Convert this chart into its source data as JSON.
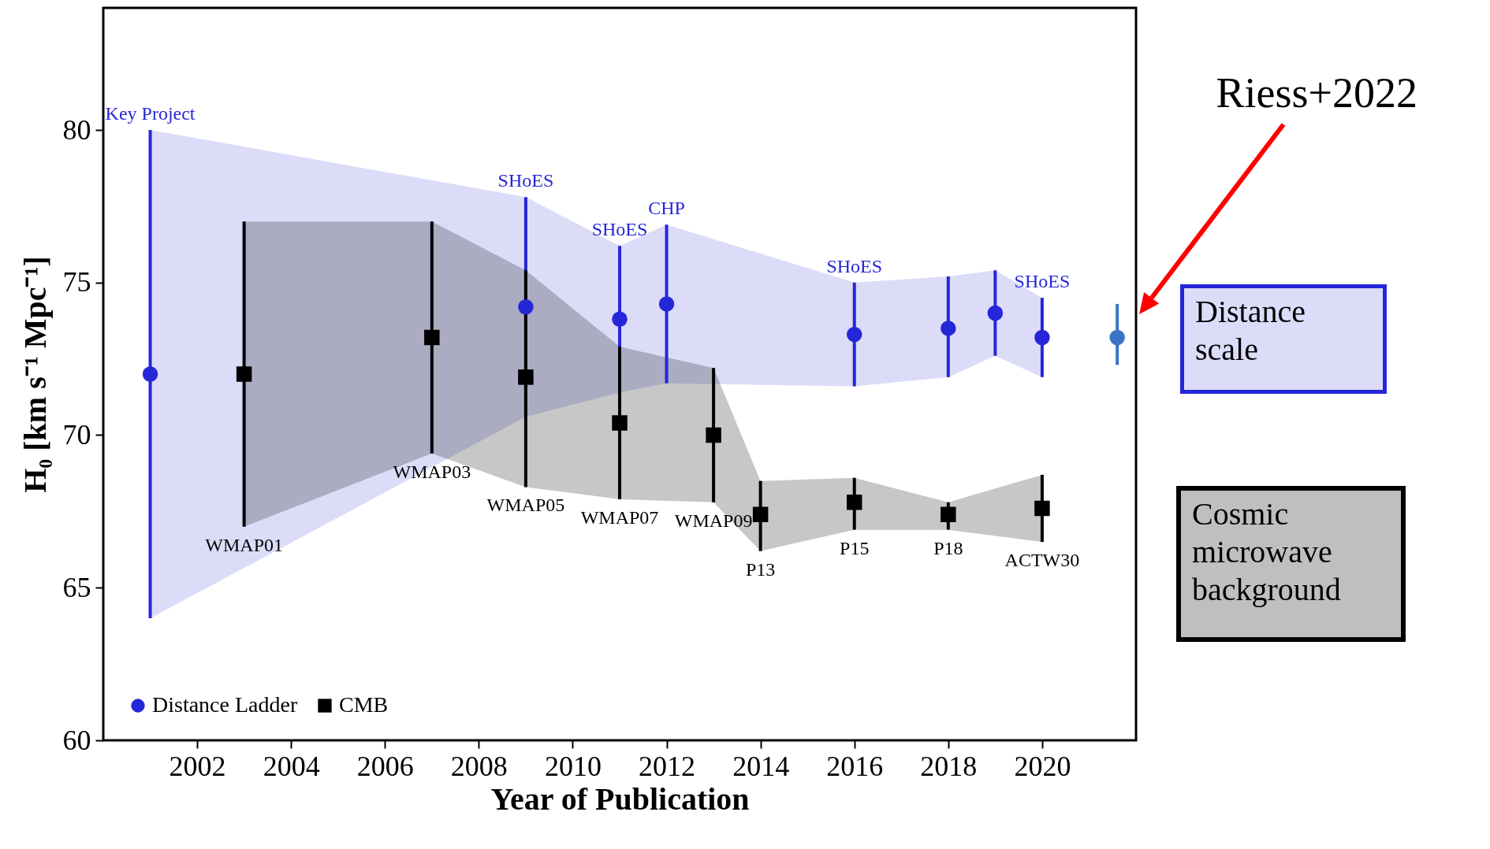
{
  "chart_data": {
    "type": "scatter",
    "xlabel": "Year of Publication",
    "ylabel": "H₀ [km s⁻¹ Mpc⁻¹]",
    "xlim": [
      2000,
      2022
    ],
    "ylim": [
      60,
      84
    ],
    "xticks": [
      2002,
      2004,
      2006,
      2008,
      2010,
      2012,
      2014,
      2016,
      2018,
      2020
    ],
    "yticks": [
      60,
      65,
      70,
      75,
      80
    ],
    "legend": "bottom left",
    "series": [
      {
        "name": "Distance Ladder",
        "color": "#2626d9",
        "marker": "circle",
        "x": [
          2001,
          2009,
          2011,
          2012,
          2016,
          2018,
          2019,
          2020
        ],
        "values": [
          72.0,
          74.2,
          73.8,
          74.3,
          73.3,
          73.5,
          74.0,
          73.2
        ],
        "errors": [
          [
            64,
            80
          ],
          [
            70.6,
            77.8
          ],
          [
            71.4,
            76.2
          ],
          [
            71.7,
            76.9
          ],
          [
            71.6,
            75.0
          ],
          [
            71.9,
            75.2
          ],
          [
            72.6,
            75.4
          ],
          [
            71.9,
            74.5
          ]
        ],
        "lower": [
          64,
          70.6,
          71.4,
          71.7,
          71.6,
          71.9,
          72.6,
          71.9
        ],
        "upper": [
          80,
          77.8,
          76.2,
          76.9,
          75.0,
          75.2,
          75.4,
          74.5
        ]
      },
      {
        "name": "CMB",
        "color": "#000000",
        "marker": "square",
        "x": [
          2003,
          2007,
          2009,
          2011,
          2013,
          2014,
          2016,
          2018,
          2020
        ],
        "values": [
          72.0,
          73.2,
          71.9,
          70.4,
          70.0,
          67.4,
          67.8,
          67.4,
          67.6
        ],
        "errors": [
          [
            67,
            77
          ],
          [
            69.4,
            77
          ],
          [
            68.3,
            75.4
          ],
          [
            67.9,
            72.9
          ],
          [
            67.8,
            72.2
          ],
          [
            66.2,
            68.5
          ],
          [
            66.9,
            68.6
          ],
          [
            66.9,
            67.8
          ],
          [
            66.5,
            68.7
          ]
        ],
        "lower": [
          67,
          69.4,
          68.3,
          67.9,
          67.8,
          66.2,
          66.9,
          66.9,
          66.5
        ],
        "upper": [
          77,
          77,
          75.4,
          72.9,
          72.2,
          68.5,
          68.6,
          67.8,
          68.7
        ]
      },
      {
        "color": "#3b73c6",
        "marker": "circle",
        "x": [
          2021.6
        ],
        "values": [
          73.2
        ],
        "errors": [
          [
            72.3,
            74.3
          ]
        ]
      }
    ],
    "annotations": [
      {
        "text": "Key Project",
        "x": 2001,
        "y": 80
      },
      {
        "text": "SHoES",
        "x": 2009,
        "y": 77.8
      },
      {
        "text": "SHoES",
        "x": 2011,
        "y": 76.2
      },
      {
        "text": "CHP",
        "x": 2012,
        "y": 76.9
      },
      {
        "text": "SHoES",
        "x": 2016,
        "y": 75.0
      },
      {
        "text": "SHoES",
        "x": 2020,
        "y": 74.5
      },
      {
        "text": "WMAP01",
        "x": 2003,
        "y": 67
      },
      {
        "text": "WMAP03",
        "x": 2007,
        "y": 69.4
      },
      {
        "text": "WMAP05",
        "x": 2009,
        "y": 68.3
      },
      {
        "text": "WMAP07",
        "x": 2011,
        "y": 67.9
      },
      {
        "text": "WMAP09",
        "x": 2013,
        "y": 67.8
      },
      {
        "text": "P13",
        "x": 2014,
        "y": 66.2
      },
      {
        "text": "P15",
        "x": 2016,
        "y": 66.9
      },
      {
        "text": "P18",
        "x": 2018,
        "y": 66.9
      },
      {
        "text": "ACTW30",
        "x": 2020,
        "y": 66.5
      },
      "Riess+2022",
      "Distance scale",
      "Cosmic microwave background"
    ]
  }
}
